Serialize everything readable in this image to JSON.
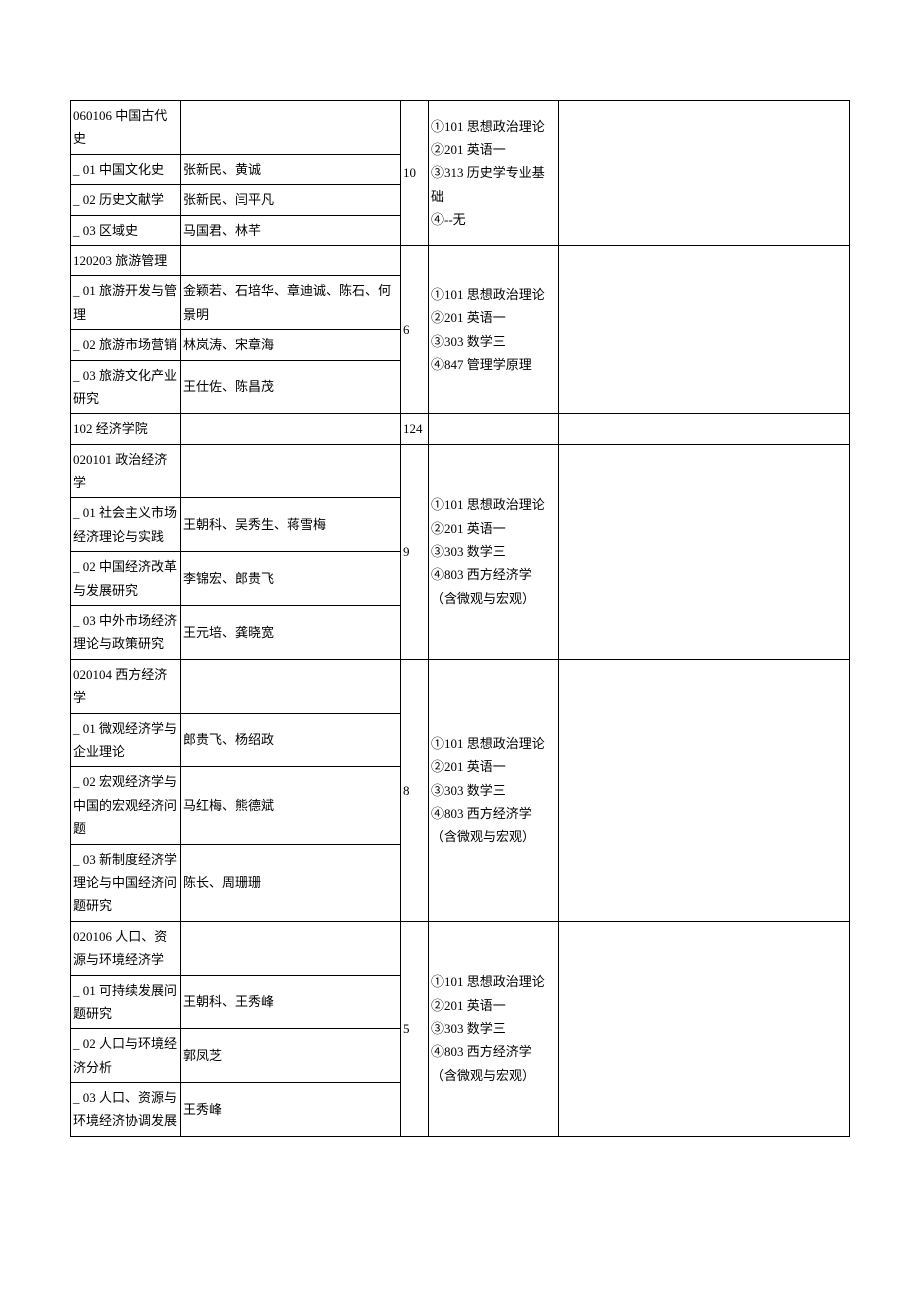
{
  "rows": [
    {
      "section": "060106",
      "sectionTitle": "060106 中国古代史",
      "subrows": [
        {
          "label": "_ 01 中国文化史",
          "advisors": "张新民、黄诚"
        },
        {
          "label": "_ 02 历史文献学",
          "advisors": "张新民、闫平凡"
        },
        {
          "label": "_ 03 区域史",
          "advisors": "马国君、林芊"
        }
      ],
      "count": "10",
      "exams": "①101 思想政治理论\n②201 英语一\n③313 历史学专业基础\n④--无",
      "note": ""
    },
    {
      "section": "120203",
      "sectionTitle": "120203 旅游管理",
      "subrows": [
        {
          "label": "_ 01 旅游开发与管理",
          "advisors": "金颖若、石培华、章迪诚、陈石、何景明"
        },
        {
          "label": "_ 02 旅游市场营销",
          "advisors": "林岚涛、宋章海"
        },
        {
          "label": "_ 03 旅游文化产业研究",
          "advisors": "王仕佐、陈昌茂"
        }
      ],
      "count": "6",
      "exams": "①101 思想政治理论\n②201 英语一\n③303 数学三\n④847 管理学原理",
      "note": ""
    },
    {
      "sectionTitle": "102 经济学院",
      "isCollege": true,
      "count": "124"
    },
    {
      "section": "020101",
      "sectionTitle": "020101 政治经济学",
      "subrows": [
        {
          "label": "_ 01 社会主义市场经济理论与实践",
          "advisors": "王朝科、吴秀生、蒋雪梅"
        },
        {
          "label": "_ 02 中国经济改革与发展研究",
          "advisors": "李锦宏、郎贵飞"
        },
        {
          "label": "_ 03 中外市场经济理论与政策研究",
          "advisors": "王元培、龚晓宽"
        }
      ],
      "count": "9",
      "exams": "①101 思想政治理论\n②201 英语一\n③303 数学三\n④803 西方经济学（含微观与宏观）",
      "note": ""
    },
    {
      "section": "020104",
      "sectionTitle": "020104 西方经济学",
      "subrows": [
        {
          "label": "_ 01 微观经济学与企业理论",
          "advisors": "郎贵飞、杨绍政"
        },
        {
          "label": "_ 02 宏观经济学与中国的宏观经济问题",
          "advisors": "马红梅、熊德斌"
        },
        {
          "label": "_ 03 新制度经济学理论与中国经济问题研究",
          "advisors": "陈长、周珊珊"
        }
      ],
      "count": "8",
      "exams": "①101 思想政治理论\n②201 英语一\n③303 数学三\n④803 西方经济学（含微观与宏观）",
      "note": ""
    },
    {
      "section": "020106",
      "sectionTitle": "020106 人口、资源与环境经济学",
      "subrows": [
        {
          "label": "_ 01 可持续发展问题研究",
          "advisors": "王朝科、王秀峰"
        },
        {
          "label": "_ 02 人口与环境经济分析",
          "advisors": "郭凤芝"
        },
        {
          "label": "_ 03 人口、资源与环境经济协调发展",
          "advisors": "王秀峰"
        }
      ],
      "count": "5",
      "exams": "①101 思想政治理论\n②201 英语一\n③303 数学三\n④803 西方经济学（含微观与宏观）",
      "note": ""
    }
  ]
}
